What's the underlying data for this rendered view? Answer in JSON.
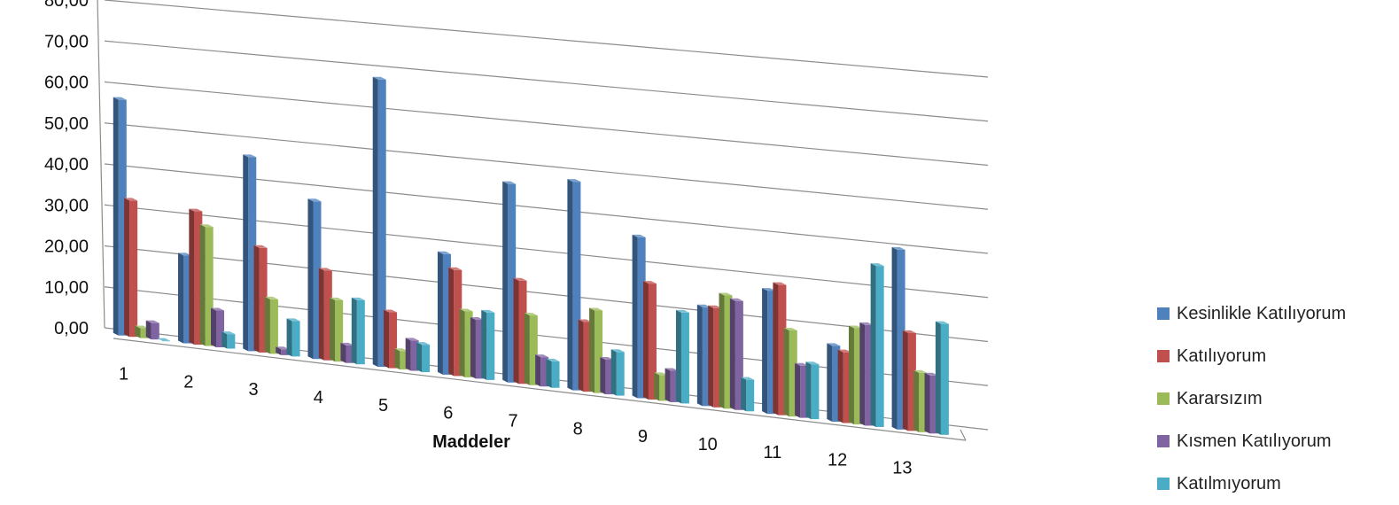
{
  "chart_data": {
    "type": "bar",
    "xlabel": "Maddeler",
    "ylabel": "",
    "ylim": [
      0,
      80
    ],
    "yticks": [
      "0,00",
      "10,00",
      "20,00",
      "30,00",
      "40,00",
      "50,00",
      "60,00",
      "70,00",
      "80,00"
    ],
    "categories": [
      "1",
      "2",
      "3",
      "4",
      "5",
      "6",
      "7",
      "8",
      "9",
      "10",
      "11",
      "12",
      "13"
    ],
    "legend_position": "right",
    "grid": true,
    "series": [
      {
        "name": "Kesinlikle Katılıyorum",
        "color": "#4f81bd",
        "values": [
          57.5,
          21.3,
          46.8,
          37.8,
          68.5,
          28.6,
          46.8,
          48.9,
          37.5,
          22.9,
          28.4,
          17.4,
          41.0
        ]
      },
      {
        "name": "Katılıyorum",
        "color": "#c0504d",
        "values": [
          33.2,
          32.3,
          25.2,
          21.5,
          13.3,
          25.1,
          24.3,
          16.3,
          27.0,
          23.0,
          30.0,
          16.2,
          22.3
        ]
      },
      {
        "name": "Kararsızım",
        "color": "#9bbb59",
        "values": [
          2.4,
          28.8,
          13.1,
          14.7,
          4.4,
          15.6,
          16.4,
          19.3,
          6.0,
          26.2,
          19.8,
          22.0,
          13.5
        ]
      },
      {
        "name": "Kısmen Katılıyorum",
        "color": "#8064a2",
        "values": [
          4.0,
          8.9,
          1.4,
          4.2,
          7.2,
          13.9,
          6.9,
          8.1,
          7.3,
          25.2,
          12.0,
          23.0,
          13.2
        ]
      },
      {
        "name": "Katılmıyorum",
        "color": "#4bacc6",
        "values": [
          0.0,
          3.5,
          8.5,
          15.3,
          6.5,
          15.9,
          6.2,
          10.2,
          21.1,
          7.3,
          12.6,
          36.8,
          25.2
        ]
      }
    ]
  }
}
